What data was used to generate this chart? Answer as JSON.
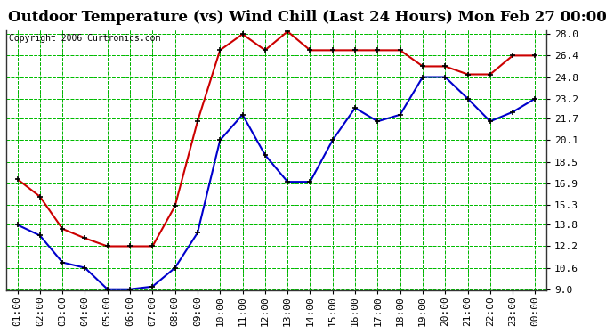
{
  "title": "Outdoor Temperature (vs) Wind Chill (Last 24 Hours) Mon Feb 27 00:00",
  "copyright": "Copyright 2006 Curtronics.com",
  "x_labels": [
    "01:00",
    "02:00",
    "03:00",
    "04:00",
    "05:00",
    "06:00",
    "07:00",
    "08:00",
    "09:00",
    "10:00",
    "11:00",
    "12:00",
    "13:00",
    "14:00",
    "15:00",
    "16:00",
    "17:00",
    "18:00",
    "19:00",
    "20:00",
    "21:00",
    "22:00",
    "23:00",
    "00:00"
  ],
  "temp_red": [
    17.2,
    15.9,
    13.5,
    12.8,
    12.2,
    12.2,
    12.2,
    15.2,
    21.5,
    26.8,
    28.0,
    26.8,
    28.2,
    26.8,
    26.8,
    26.8,
    26.8,
    26.8,
    25.6,
    25.6,
    25.0,
    25.0,
    26.4,
    26.4
  ],
  "temp_blue": [
    13.8,
    13.0,
    11.0,
    10.6,
    9.0,
    9.0,
    9.2,
    10.6,
    13.2,
    20.1,
    22.0,
    19.0,
    17.0,
    17.0,
    20.1,
    22.5,
    21.5,
    22.0,
    24.8,
    24.8,
    23.2,
    21.5,
    22.2,
    23.2
  ],
  "red_color": "#cc0000",
  "blue_color": "#0000cc",
  "marker_color": "#000000",
  "bg_color": "#ffffff",
  "grid_color": "#00bb00",
  "grid_dash_color": "#006600",
  "y_ticks": [
    9.0,
    10.6,
    12.2,
    13.8,
    15.3,
    16.9,
    18.5,
    20.1,
    21.7,
    23.2,
    24.8,
    26.4,
    28.0
  ],
  "y_min": 9.0,
  "y_max": 28.0,
  "title_fontsize": 12,
  "copyright_fontsize": 7,
  "tick_fontsize": 8
}
